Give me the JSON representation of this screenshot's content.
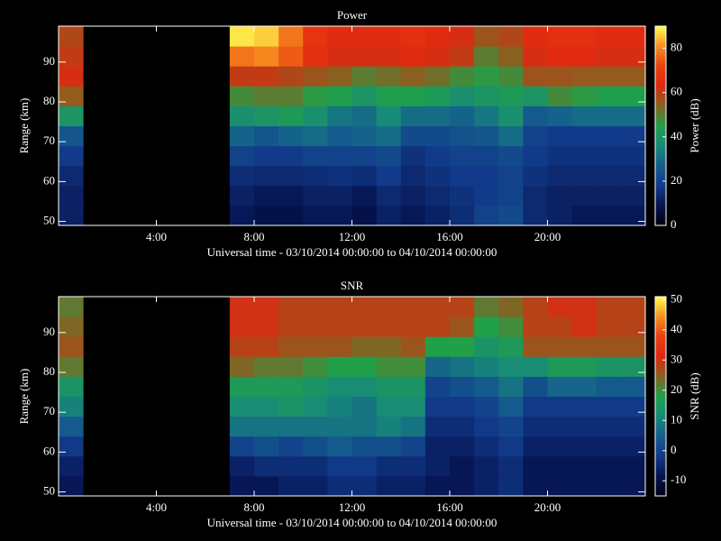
{
  "chart_data": [
    {
      "type": "heatmap",
      "title": "Power",
      "xlabel": "Universal time - 03/10/2014 00:00:00 to 04/10/2014 00:00:00",
      "ylabel": "Range (km)",
      "colorbar_label": "Power (dB)",
      "xlim": [
        0,
        24
      ],
      "ylim": [
        49,
        99
      ],
      "zlim": [
        0,
        90
      ],
      "xticks": [
        {
          "value": 4,
          "label": "4:00"
        },
        {
          "value": 8,
          "label": "8:00"
        },
        {
          "value": 12,
          "label": "12:00"
        },
        {
          "value": 16,
          "label": "16:00"
        },
        {
          "value": 20,
          "label": "20:00"
        }
      ],
      "yticks": [
        50,
        60,
        70,
        80,
        90
      ],
      "zticks": [
        0,
        20,
        40,
        60,
        80
      ],
      "colorscale": [
        "#000010",
        "#061450",
        "#123a8a",
        "#145e8c",
        "#188a78",
        "#20a048",
        "#8a6020",
        "#e02810",
        "#e84010",
        "#f89020",
        "#ffff50"
      ],
      "xbins": [
        0,
        1,
        2,
        3,
        4,
        5,
        6,
        7,
        8,
        9,
        10,
        11,
        12,
        13,
        14,
        15,
        16,
        17,
        18,
        19,
        20,
        21,
        22,
        23,
        24
      ],
      "ybins": [
        49,
        54,
        59,
        64,
        69,
        74,
        79,
        84,
        89,
        94,
        99
      ],
      "z": [
        [
          12,
          null,
          null,
          null,
          null,
          null,
          null,
          10,
          8,
          8,
          10,
          10,
          8,
          12,
          10,
          12,
          15,
          20,
          22,
          14,
          12,
          10,
          10,
          10
        ],
        [
          12,
          null,
          null,
          null,
          null,
          null,
          null,
          12,
          10,
          10,
          12,
          12,
          10,
          14,
          12,
          14,
          16,
          18,
          20,
          14,
          12,
          12,
          12,
          12
        ],
        [
          14,
          null,
          null,
          null,
          null,
          null,
          null,
          15,
          14,
          14,
          15,
          16,
          15,
          18,
          14,
          16,
          18,
          18,
          20,
          16,
          14,
          14,
          14,
          14
        ],
        [
          18,
          null,
          null,
          null,
          null,
          null,
          null,
          20,
          18,
          18,
          20,
          20,
          20,
          22,
          16,
          18,
          20,
          20,
          22,
          18,
          16,
          16,
          16,
          16
        ],
        [
          25,
          null,
          null,
          null,
          null,
          null,
          null,
          28,
          25,
          28,
          30,
          26,
          28,
          30,
          22,
          22,
          24,
          25,
          30,
          20,
          18,
          18,
          18,
          18
        ],
        [
          40,
          null,
          null,
          null,
          null,
          null,
          null,
          38,
          40,
          42,
          38,
          32,
          30,
          36,
          30,
          30,
          28,
          32,
          38,
          26,
          28,
          30,
          30,
          30
        ],
        [
          55,
          null,
          null,
          null,
          null,
          null,
          null,
          48,
          50,
          50,
          46,
          44,
          40,
          44,
          44,
          42,
          38,
          40,
          42,
          40,
          48,
          46,
          44,
          44
        ],
        [
          62,
          null,
          null,
          null,
          null,
          null,
          null,
          60,
          60,
          58,
          56,
          54,
          50,
          52,
          54,
          52,
          48,
          46,
          48,
          56,
          56,
          55,
          55,
          55
        ],
        [
          60,
          null,
          null,
          null,
          null,
          null,
          null,
          78,
          80,
          75,
          66,
          62,
          62,
          62,
          64,
          62,
          60,
          50,
          54,
          62,
          64,
          64,
          62,
          62
        ],
        [
          58,
          null,
          null,
          null,
          null,
          null,
          null,
          88,
          86,
          78,
          68,
          64,
          64,
          64,
          66,
          64,
          62,
          56,
          58,
          64,
          66,
          66,
          64,
          64
        ]
      ]
    },
    {
      "type": "heatmap",
      "title": "SNR",
      "xlabel": "Universal time - 03/10/2014 00:00:00 to 04/10/2014 00:00:00",
      "ylabel": "Range (km)",
      "colorbar_label": "SNR (dB)",
      "xlim": [
        0,
        24
      ],
      "ylim": [
        49,
        99
      ],
      "zlim": [
        -15,
        51
      ],
      "xticks": [
        {
          "value": 4,
          "label": "4:00"
        },
        {
          "value": 8,
          "label": "8:00"
        },
        {
          "value": 12,
          "label": "12:00"
        },
        {
          "value": 16,
          "label": "16:00"
        },
        {
          "value": 20,
          "label": "20:00"
        }
      ],
      "yticks": [
        50,
        60,
        70,
        80,
        90
      ],
      "zticks": [
        -10,
        0,
        10,
        20,
        30,
        40,
        50
      ],
      "colorscale": [
        "#000010",
        "#061450",
        "#123a8a",
        "#145e8c",
        "#188a78",
        "#20a048",
        "#8a6020",
        "#e02810",
        "#e84010",
        "#f89020",
        "#ffff50"
      ],
      "xbins": [
        0,
        1,
        2,
        3,
        4,
        5,
        6,
        7,
        8,
        9,
        10,
        11,
        12,
        13,
        14,
        15,
        16,
        17,
        18,
        19,
        20,
        21,
        22,
        23,
        24
      ],
      "ybins": [
        49,
        54,
        59,
        64,
        69,
        74,
        79,
        84,
        89,
        94,
        99
      ],
      "z": [
        [
          -8,
          null,
          null,
          null,
          null,
          null,
          null,
          -8,
          -8,
          -6,
          -6,
          -4,
          -4,
          -6,
          -6,
          -8,
          -8,
          -6,
          -4,
          -8,
          -8,
          -8,
          -8,
          -8
        ],
        [
          -6,
          null,
          null,
          null,
          null,
          null,
          null,
          -6,
          -4,
          -4,
          -4,
          -2,
          -2,
          -4,
          -4,
          -6,
          -8,
          -6,
          -4,
          -8,
          -8,
          -8,
          -8,
          -8
        ],
        [
          -2,
          null,
          null,
          null,
          null,
          null,
          null,
          0,
          2,
          0,
          2,
          4,
          2,
          2,
          0,
          -6,
          -6,
          -4,
          -2,
          -6,
          -6,
          -6,
          -6,
          -6
        ],
        [
          4,
          null,
          null,
          null,
          null,
          null,
          null,
          8,
          8,
          8,
          8,
          8,
          8,
          10,
          8,
          -4,
          -4,
          -2,
          0,
          -4,
          -4,
          -4,
          -4,
          -4
        ],
        [
          10,
          null,
          null,
          null,
          null,
          null,
          null,
          12,
          12,
          14,
          12,
          10,
          8,
          12,
          12,
          -2,
          -2,
          0,
          4,
          -2,
          -2,
          -2,
          -2,
          -2
        ],
        [
          14,
          null,
          null,
          null,
          null,
          null,
          null,
          16,
          16,
          16,
          14,
          12,
          12,
          14,
          14,
          0,
          2,
          4,
          8,
          2,
          6,
          6,
          4,
          4
        ],
        [
          22,
          null,
          null,
          null,
          null,
          null,
          null,
          24,
          22,
          22,
          20,
          18,
          18,
          20,
          20,
          6,
          8,
          10,
          12,
          12,
          16,
          16,
          14,
          14
        ],
        [
          26,
          null,
          null,
          null,
          null,
          null,
          null,
          28,
          28,
          26,
          26,
          26,
          24,
          24,
          26,
          18,
          18,
          14,
          16,
          26,
          26,
          26,
          26,
          26
        ],
        [
          24,
          null,
          null,
          null,
          null,
          null,
          null,
          30,
          30,
          28,
          28,
          28,
          28,
          28,
          28,
          28,
          26,
          18,
          20,
          28,
          28,
          30,
          28,
          28
        ],
        [
          22,
          null,
          null,
          null,
          null,
          null,
          null,
          30,
          30,
          28,
          28,
          28,
          28,
          28,
          28,
          28,
          28,
          22,
          24,
          28,
          30,
          30,
          28,
          28
        ]
      ]
    }
  ]
}
